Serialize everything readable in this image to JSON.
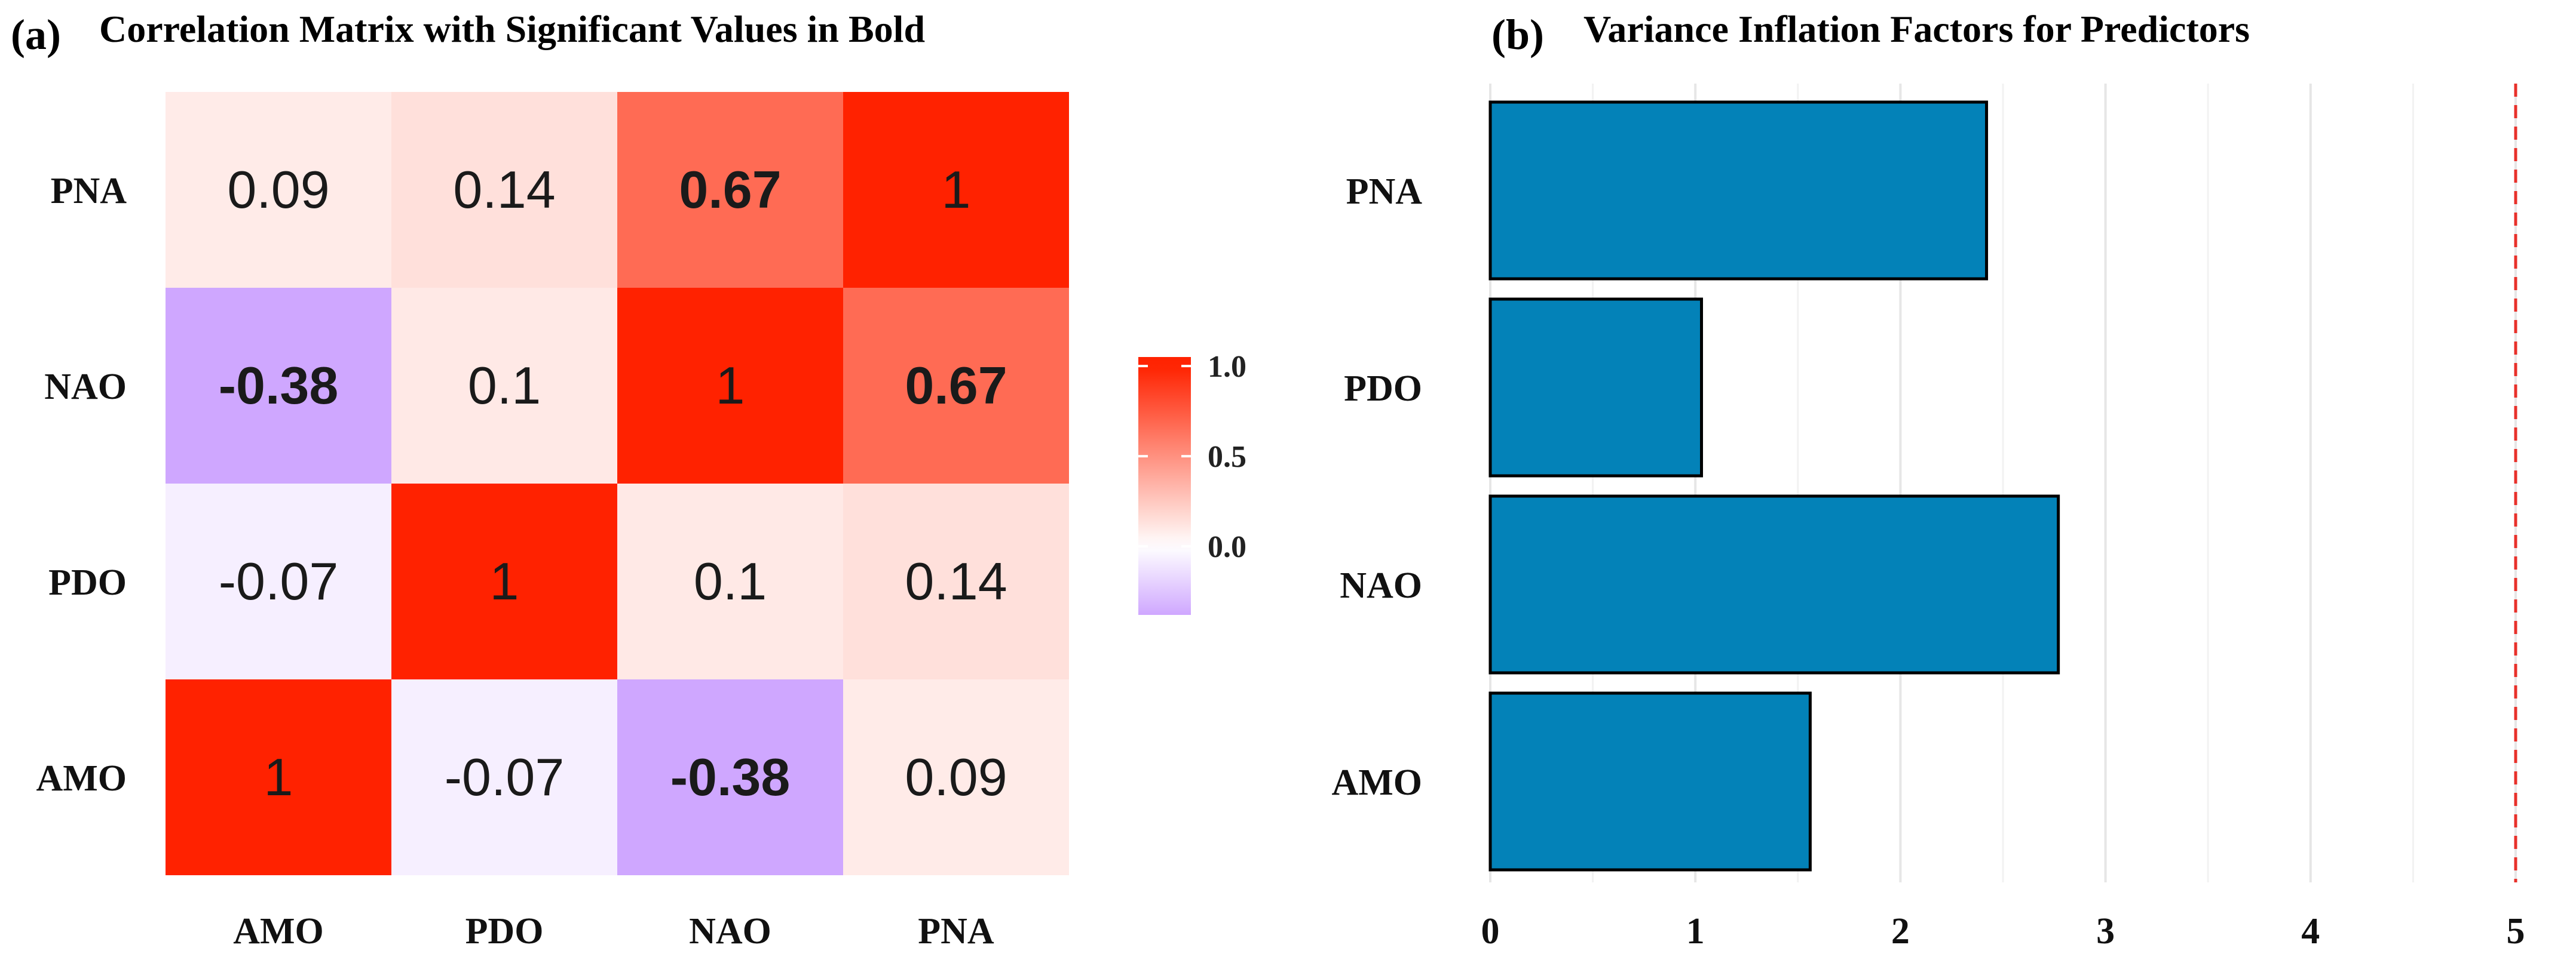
{
  "chart_data": [
    {
      "panel_label": "(a)",
      "title": "Correlation Matrix with Significant Values in Bold",
      "type": "heatmap",
      "x_labels": [
        "AMO",
        "PDO",
        "NAO",
        "PNA"
      ],
      "y_labels": [
        "PNA",
        "NAO",
        "PDO",
        "AMO"
      ],
      "cells": [
        [
          {
            "text": "0.09",
            "value": 0.09,
            "bold": false
          },
          {
            "text": "0.14",
            "value": 0.14,
            "bold": false
          },
          {
            "text": "0.67",
            "value": 0.67,
            "bold": true
          },
          {
            "text": "1",
            "value": 1.0,
            "bold": false
          }
        ],
        [
          {
            "text": "-0.38",
            "value": -0.38,
            "bold": true
          },
          {
            "text": "0.1",
            "value": 0.1,
            "bold": false
          },
          {
            "text": "1",
            "value": 1.0,
            "bold": false
          },
          {
            "text": "0.67",
            "value": 0.67,
            "bold": true
          }
        ],
        [
          {
            "text": "-0.07",
            "value": -0.07,
            "bold": false
          },
          {
            "text": "1",
            "value": 1.0,
            "bold": false
          },
          {
            "text": "0.1",
            "value": 0.1,
            "bold": false
          },
          {
            "text": "0.14",
            "value": 0.14,
            "bold": false
          }
        ],
        [
          {
            "text": "1",
            "value": 1.0,
            "bold": false
          },
          {
            "text": "-0.07",
            "value": -0.07,
            "bold": false
          },
          {
            "text": "-0.38",
            "value": -0.38,
            "bold": true
          },
          {
            "text": "0.09",
            "value": 0.09,
            "bold": false
          }
        ]
      ],
      "colorbar": {
        "range": [
          -0.38,
          1.05
        ],
        "ticks": [
          {
            "value": 1.0,
            "label": "1.0"
          },
          {
            "value": 0.5,
            "label": "0.5"
          },
          {
            "value": 0.0,
            "label": "0.0"
          }
        ],
        "colors": {
          "low": "#cfa7ff",
          "mid": "#ffffff",
          "high": "#ff2200"
        }
      }
    },
    {
      "panel_label": "(b)",
      "title": "Variance Inflation Factors for Predictors",
      "type": "bar",
      "orientation": "horizontal",
      "categories": [
        "PNA",
        "PDO",
        "NAO",
        "AMO"
      ],
      "values": [
        2.42,
        1.03,
        2.77,
        1.56
      ],
      "x_ticks": [
        0,
        1,
        2,
        3,
        4,
        5
      ],
      "xlim": [
        0,
        5.3
      ],
      "threshold": 5,
      "bar_color": "#0382b8",
      "threshold_color": "#e8302a"
    }
  ]
}
